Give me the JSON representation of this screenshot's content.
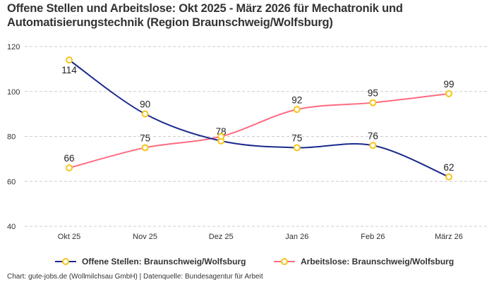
{
  "chart_data": {
    "type": "line",
    "title": "Offene Stellen und Arbeitslose: Okt 2025 - März 2026 für Mechatronik und Automatisierungstechnik (Region Braunschweig/Wolfsburg)",
    "categories": [
      "Okt 25",
      "Nov 25",
      "Dez 25",
      "Jan 26",
      "Feb 26",
      "März 26"
    ],
    "ylim": [
      40,
      120
    ],
    "yticks": [
      40,
      60,
      80,
      100,
      120
    ],
    "grid": true,
    "legend_position": "bottom",
    "series": [
      {
        "name": "Offene Stellen: Braunschweig/Wolfsburg",
        "values": [
          114,
          90,
          78,
          75,
          76,
          62
        ],
        "color": "#1a2a8c",
        "label_pos": [
          "below",
          "above",
          "above",
          "above",
          "above",
          "above"
        ],
        "labels_shown": [
          true,
          true,
          true,
          true,
          true,
          true
        ]
      },
      {
        "name": "Arbeitslose: Braunschweig/Wolfsburg",
        "values": [
          66,
          75,
          80,
          92,
          95,
          99
        ],
        "color": "#ff6b81",
        "label_pos": [
          "above",
          "above",
          "above",
          "above",
          "above",
          "above"
        ],
        "labels_shown": [
          true,
          true,
          false,
          true,
          true,
          true
        ]
      }
    ],
    "marker_color": "#f5c518"
  },
  "footer": "Chart: gute-jobs.de (Wollmilchsau GmbH) | Datenquelle: Bundesagentur für Arbeit"
}
